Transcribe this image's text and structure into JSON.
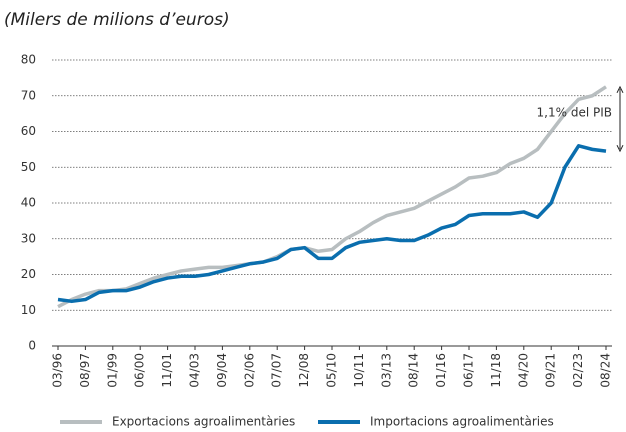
{
  "chart_data": {
    "type": "line",
    "subtitle": "(Milers de milions d’euros)",
    "categories": [
      "03/96",
      null,
      "08/97",
      null,
      "01/99",
      null,
      "06/00",
      null,
      "11/01",
      null,
      "04/03",
      null,
      "09/04",
      null,
      "02/06",
      null,
      "07/07",
      null,
      "12/08",
      null,
      "05/10",
      null,
      "10/11",
      null,
      "03/13",
      null,
      "08/14",
      null,
      "01/16",
      null,
      "06/17",
      null,
      "11/18",
      null,
      "04/20",
      null,
      "09/21",
      null,
      "02/23",
      null,
      "08/24"
    ],
    "series": [
      {
        "name": "Exportacions agroalimentàries",
        "color": "#b8bec0",
        "values": [
          11,
          13,
          14.5,
          15.5,
          15.5,
          16,
          17.5,
          19,
          20,
          21,
          21.5,
          22,
          22,
          22.5,
          23,
          23.5,
          25,
          27,
          27.5,
          26.5,
          27,
          30,
          32,
          34.5,
          36.5,
          37.5,
          38.5,
          40.5,
          42.5,
          44.5,
          47,
          47.5,
          48.5,
          51,
          52.5,
          55,
          60,
          65,
          69,
          70,
          72.5
        ]
      },
      {
        "name": "Importacions agroalimentàries",
        "color": "#0a6eae",
        "values": [
          13,
          12.5,
          13,
          15,
          15.5,
          15.5,
          16.5,
          18,
          19,
          19.5,
          19.5,
          20,
          21,
          22,
          23,
          23.5,
          24.5,
          27,
          27.5,
          24.5,
          24.5,
          27.5,
          29,
          29.5,
          30,
          29.5,
          29.5,
          31,
          33,
          34,
          36.5,
          37,
          37,
          37,
          37.5,
          36,
          40,
          50,
          56,
          55,
          54.5
        ]
      }
    ],
    "ylim": [
      0,
      80
    ],
    "yticks": [
      0,
      10,
      20,
      30,
      40,
      50,
      60,
      70,
      80
    ],
    "grid": true,
    "annotation": "1,1% del PIB"
  }
}
